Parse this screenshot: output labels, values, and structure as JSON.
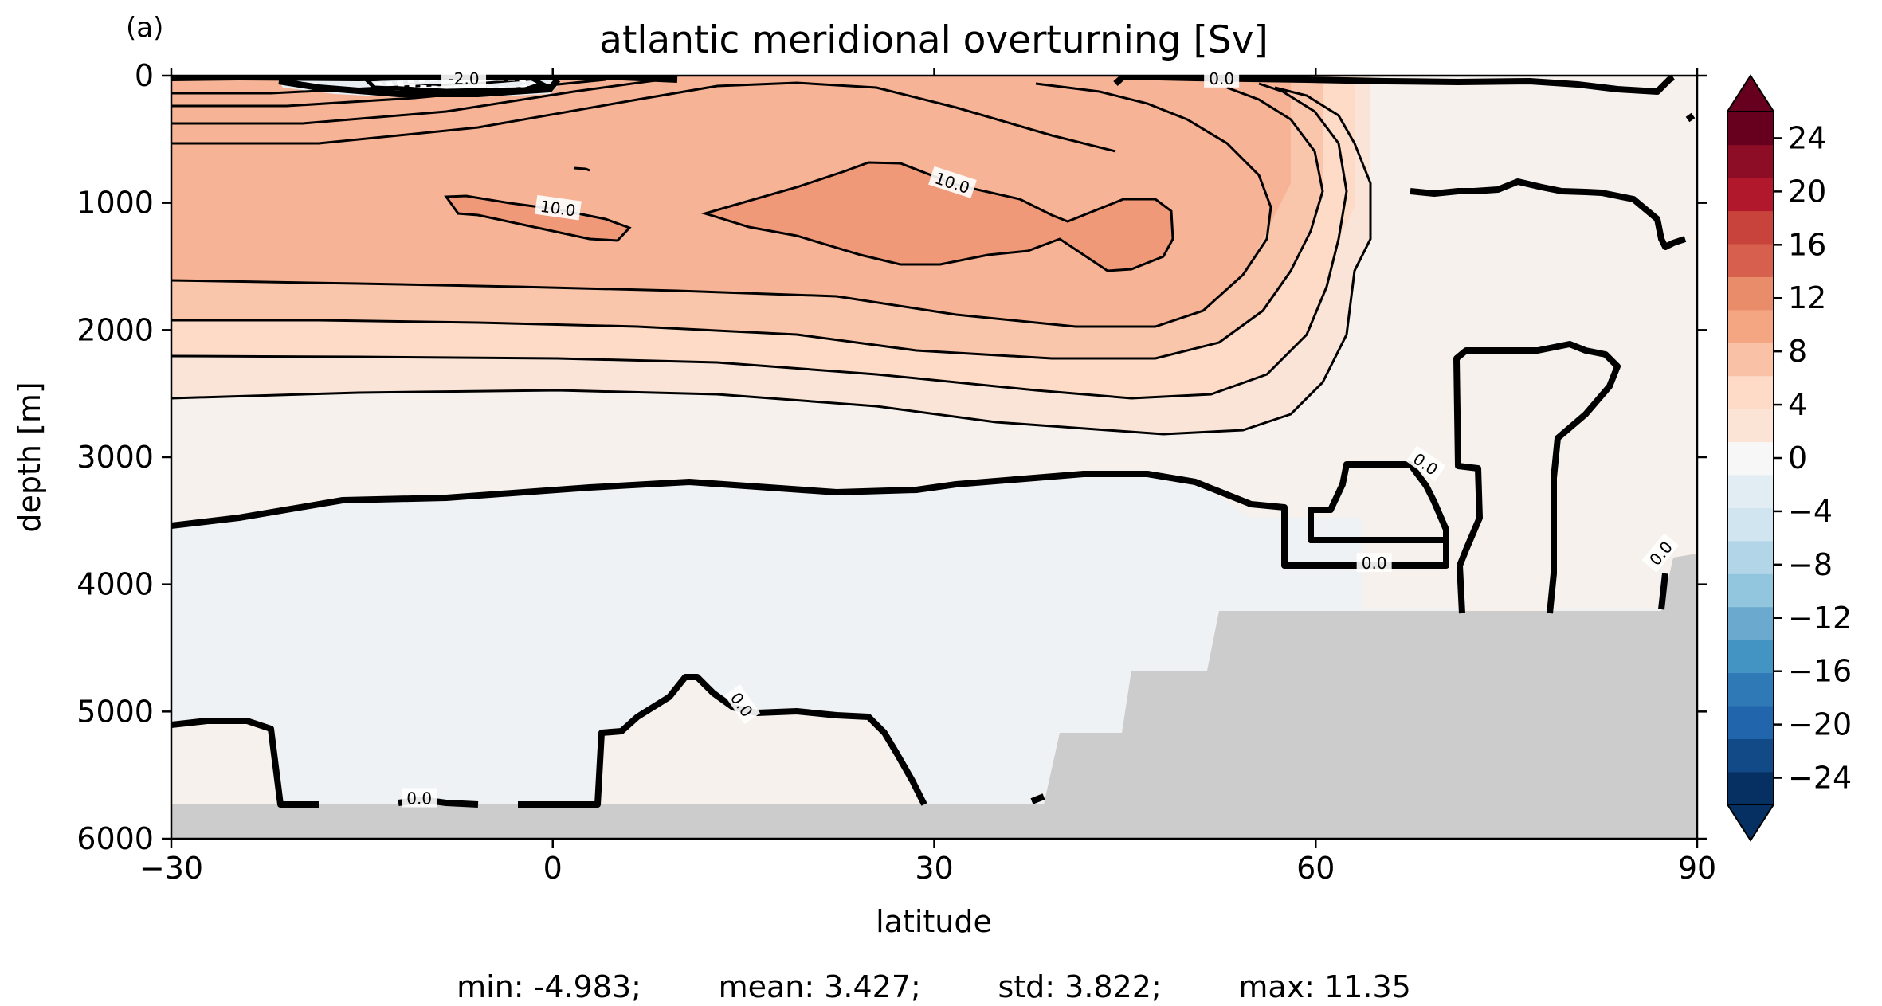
{
  "panel_label": "(a)",
  "stats": "min: -4.983;        mean: 3.427;        std: 3.822;        max: 11.35",
  "colors": {
    "land": "#cccccc",
    "colorbar": [
      "#053061",
      "#124a87",
      "#2166ac",
      "#3079b7",
      "#4393c3",
      "#6ba9cf",
      "#92c5de",
      "#b2d6e8",
      "#d1e5f0",
      "#e2edf3",
      "#f7f7f7",
      "#fbe4d6",
      "#fddbc7",
      "#f9c2a7",
      "#f4a582",
      "#e98c6a",
      "#d6604d",
      "#c8433b",
      "#b2182b",
      "#8c0d25",
      "#67001f"
    ]
  },
  "chart_data": {
    "type": "contour",
    "title": "atlantic meridional overturning [Sv]",
    "xlabel": "latitude",
    "ylabel": "depth [m]",
    "xlim": [
      -30,
      90
    ],
    "ylim": [
      6000,
      0
    ],
    "xticks": [
      -30,
      0,
      30,
      60,
      90
    ],
    "yticks": [
      0,
      1000,
      2000,
      3000,
      4000,
      5000,
      6000
    ],
    "colorbar": {
      "ticks": [
        24,
        20,
        16,
        12,
        8,
        4,
        0,
        -4,
        -8,
        -12,
        -16,
        -20,
        -24
      ],
      "tick_labels": [
        "24",
        "20",
        "16",
        "12",
        "8",
        "4",
        "0",
        "−4",
        "−8",
        "−12",
        "−16",
        "−20",
        "−24"
      ],
      "range": [
        -26,
        26
      ],
      "step": 2,
      "extend": "both"
    },
    "contour_labels": [
      {
        "text": "-2.0",
        "x": -7,
        "y": 30,
        "rot": 0
      },
      {
        "text": "0.0",
        "x": 52.6,
        "y": 30,
        "rot": 0
      },
      {
        "text": "10.0",
        "x": 0.4,
        "y": 1050,
        "rot": 8
      },
      {
        "text": "10.0",
        "x": 31.4,
        "y": 850,
        "rot": 18
      },
      {
        "text": "0.0",
        "x": 68.6,
        "y": 3060,
        "rot": 35
      },
      {
        "text": "0.0",
        "x": 64.6,
        "y": 3840,
        "rot": 0
      },
      {
        "text": "0.0",
        "x": 87.2,
        "y": 3760,
        "rot": -50
      },
      {
        "text": "0.0",
        "x": -10.5,
        "y": 5690,
        "rot": 0
      },
      {
        "text": "0.0",
        "x": 14.8,
        "y": 4950,
        "rot": 55
      }
    ]
  }
}
